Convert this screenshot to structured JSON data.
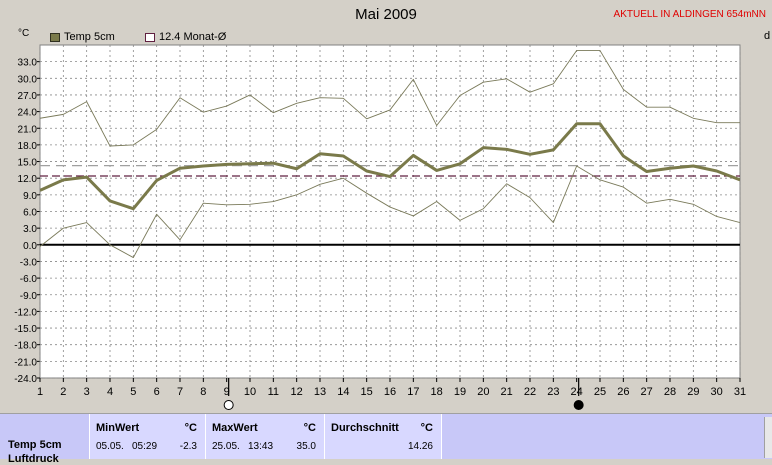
{
  "header": {
    "title": "Mai 2009",
    "station": "AKTUELL IN ALDINGEN 654mNN",
    "unit": "°C",
    "right_cut": "d"
  },
  "legend": {
    "series1": "Temp 5cm",
    "series2": "12.4 Monat-Ø"
  },
  "colors": {
    "mean_line": "#7a7a4a",
    "minmax_line": "#7a7a5a",
    "month_avg_line": "#602040",
    "long_avg_line": "#a0a0a0",
    "grid": "#888888",
    "table_bg": "#c8c8f8",
    "station_text": "#e00000"
  },
  "chart_data": {
    "type": "line",
    "title": "Mai 2009",
    "ylabel": "°C",
    "xlabel": "",
    "ylim": [
      -24,
      36
    ],
    "yticks": [
      33.0,
      30.0,
      27.0,
      24.0,
      21.0,
      18.0,
      15.0,
      12.0,
      9.0,
      6.0,
      3.0,
      0.0,
      -3.0,
      -6.0,
      -9.0,
      -12.0,
      -15.0,
      -18.0,
      -21.0,
      -24.0
    ],
    "ytick_labels": [
      "33.0",
      "30.0",
      "27.0",
      "24.0",
      "21.0",
      "18.0",
      "15.0",
      "12.0",
      "9.0",
      "6.0",
      "3.0",
      "0.0",
      "-3.0",
      "-6.0",
      "-9.0",
      "-12.0",
      "-15.0",
      "-18.0",
      "-21.0",
      "-24.0"
    ],
    "x": [
      1,
      2,
      3,
      4,
      5,
      6,
      7,
      8,
      9,
      10,
      11,
      12,
      13,
      14,
      15,
      16,
      17,
      18,
      19,
      20,
      21,
      22,
      23,
      24,
      25,
      26,
      27,
      28,
      29,
      30,
      31
    ],
    "grid": true,
    "legend_position": "top-left",
    "moon_markers": [
      {
        "day": 9,
        "phase": "full"
      },
      {
        "day": 24,
        "phase": "new"
      }
    ],
    "series": [
      {
        "name": "Temp 5cm",
        "role": "mean",
        "values": [
          9.8,
          11.7,
          12.2,
          7.9,
          6.5,
          11.6,
          13.8,
          14.2,
          14.5,
          14.6,
          14.7,
          13.7,
          16.4,
          16.0,
          13.3,
          12.3,
          16.1,
          13.4,
          14.6,
          17.5,
          17.2,
          16.3,
          17.1,
          21.8,
          21.8,
          16.0,
          13.2,
          13.8,
          14.2,
          13.3,
          11.7
        ]
      },
      {
        "role": "max",
        "values": [
          22.8,
          23.5,
          25.8,
          17.8,
          18.0,
          20.8,
          26.5,
          23.9,
          25.0,
          27.0,
          23.8,
          25.5,
          26.5,
          26.4,
          22.7,
          24.3,
          29.8,
          21.5,
          26.9,
          29.3,
          29.9,
          27.5,
          29.0,
          35.0,
          35.0,
          28.0,
          24.8,
          24.8,
          22.8,
          22.0,
          22.0
        ]
      },
      {
        "role": "min",
        "values": [
          -0.3,
          3.0,
          4.0,
          0.0,
          -2.3,
          5.5,
          0.9,
          7.5,
          7.2,
          7.3,
          7.8,
          9.0,
          10.9,
          12.0,
          9.3,
          6.8,
          5.2,
          7.8,
          4.4,
          6.5,
          11.0,
          8.5,
          4.0,
          14.2,
          11.7,
          10.4,
          7.5,
          8.2,
          7.3,
          5.1,
          4.0
        ]
      },
      {
        "name": "12.4 Monat-Ø",
        "role": "month_avg",
        "values": [
          12.4,
          12.4,
          12.4,
          12.4,
          12.4,
          12.4,
          12.4,
          12.4,
          12.4,
          12.4,
          12.4,
          12.4,
          12.4,
          12.4,
          12.4,
          12.4,
          12.4,
          12.4,
          12.4,
          12.4,
          12.4,
          12.4,
          12.4,
          12.4,
          12.4,
          12.4,
          12.4,
          12.4,
          12.4,
          12.4,
          12.4
        ]
      },
      {
        "role": "long_avg",
        "values": [
          14.26,
          14.26,
          14.26,
          14.26,
          14.26,
          14.26,
          14.26,
          14.26,
          14.26,
          14.26,
          14.26,
          14.26,
          14.26,
          14.26,
          14.26,
          14.26,
          14.26,
          14.26,
          14.26,
          14.26,
          14.26,
          14.26,
          14.26,
          14.26,
          14.26,
          14.26,
          14.26,
          14.26,
          14.26,
          14.26,
          14.26
        ]
      }
    ]
  },
  "table": {
    "row_label": "Temp 5cm",
    "row_label_cut": "Luftdruck",
    "min_header": "MinWert",
    "min_unit": "°C",
    "min_date": "05.05.",
    "min_time": "05:29",
    "min_value": "-2.3",
    "max_header": "MaxWert",
    "max_unit": "°C",
    "max_date": "25.05.",
    "max_time": "13:43",
    "max_value": "35.0",
    "avg_header": "Durchschnitt",
    "avg_unit": "°C",
    "avg_value": "14.26"
  }
}
